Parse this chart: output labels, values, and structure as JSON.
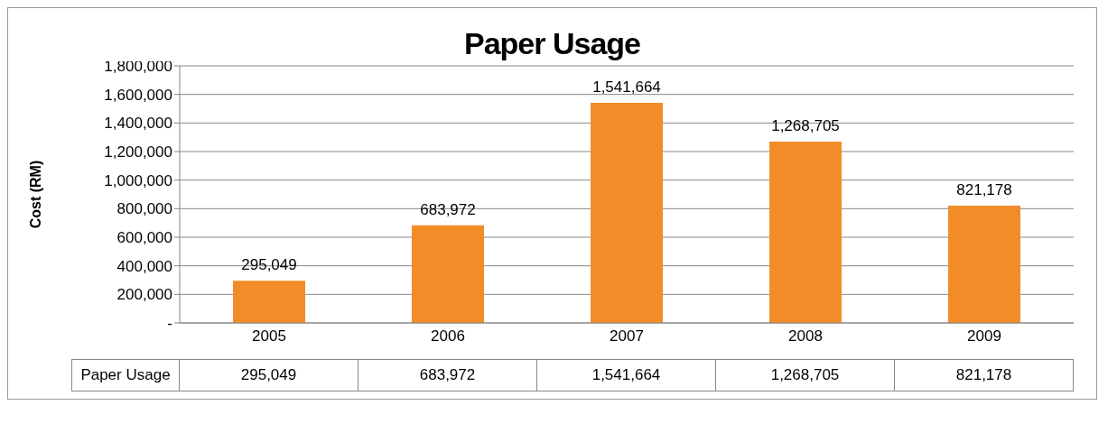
{
  "chart_data": {
    "type": "bar",
    "title": "Paper Usage",
    "ylabel": "Cost (RM)",
    "categories": [
      "2005",
      "2006",
      "2007",
      "2008",
      "2009"
    ],
    "series": [
      {
        "name": "Paper Usage",
        "color": "#f28c28",
        "values": [
          295049,
          683972,
          1541664,
          1268705,
          821178
        ],
        "value_labels": [
          "295,049",
          "683,972",
          "1,541,664",
          "1,268,705",
          "821,178"
        ]
      }
    ],
    "ylim": [
      0,
      1800000
    ],
    "yticks": [
      {
        "value": 0,
        "label": "-"
      },
      {
        "value": 200000,
        "label": "200,000"
      },
      {
        "value": 400000,
        "label": "400,000"
      },
      {
        "value": 600000,
        "label": "600,000"
      },
      {
        "value": 800000,
        "label": "800,000"
      },
      {
        "value": 1000000,
        "label": "1,000,000"
      },
      {
        "value": 1200000,
        "label": "1,200,000"
      },
      {
        "value": 1400000,
        "label": "1,400,000"
      },
      {
        "value": 1600000,
        "label": "1,600,000"
      },
      {
        "value": 1800000,
        "label": "1,800,000"
      }
    ],
    "grid": "y",
    "legend": false
  }
}
